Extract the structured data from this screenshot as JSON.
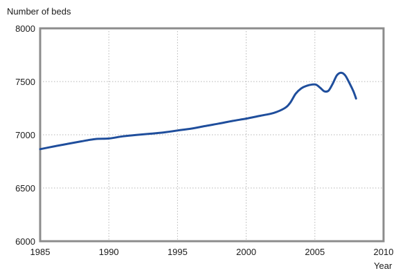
{
  "chart_data": {
    "type": "line",
    "title": "",
    "ylabel": "Number of beds",
    "xlabel": "Year",
    "xlim": [
      1985,
      2010
    ],
    "ylim": [
      6000,
      8000
    ],
    "x_ticks": [
      "1985",
      "1990",
      "1995",
      "2000",
      "2005",
      "2010"
    ],
    "y_ticks": [
      "6000",
      "6500",
      "7000",
      "7500",
      "8000"
    ],
    "grid": true,
    "legend": "none",
    "series": [
      {
        "color": "#1f4e9c",
        "points": [
          [
            1985,
            6865
          ],
          [
            1986,
            6890
          ],
          [
            1987,
            6915
          ],
          [
            1988,
            6938
          ],
          [
            1989,
            6960
          ],
          [
            1990,
            6965
          ],
          [
            1991,
            6985
          ],
          [
            1992,
            6998
          ],
          [
            1993,
            7010
          ],
          [
            1994,
            7022
          ],
          [
            1995,
            7040
          ],
          [
            1996,
            7058
          ],
          [
            1997,
            7082
          ],
          [
            1998,
            7105
          ],
          [
            1999,
            7130
          ],
          [
            2000,
            7152
          ],
          [
            2001,
            7178
          ],
          [
            2002,
            7205
          ],
          [
            2002.8,
            7250
          ],
          [
            2003.2,
            7300
          ],
          [
            2003.6,
            7385
          ],
          [
            2004.0,
            7435
          ],
          [
            2004.4,
            7460
          ],
          [
            2004.8,
            7472
          ],
          [
            2005.1,
            7470
          ],
          [
            2005.4,
            7440
          ],
          [
            2005.7,
            7408
          ],
          [
            2006.0,
            7415
          ],
          [
            2006.3,
            7480
          ],
          [
            2006.6,
            7558
          ],
          [
            2006.9,
            7583
          ],
          [
            2007.2,
            7560
          ],
          [
            2007.5,
            7490
          ],
          [
            2007.8,
            7410
          ],
          [
            2008.0,
            7340
          ]
        ]
      }
    ],
    "frame_color": "#8c8c8c",
    "grid_color": "#b5b5b5"
  }
}
